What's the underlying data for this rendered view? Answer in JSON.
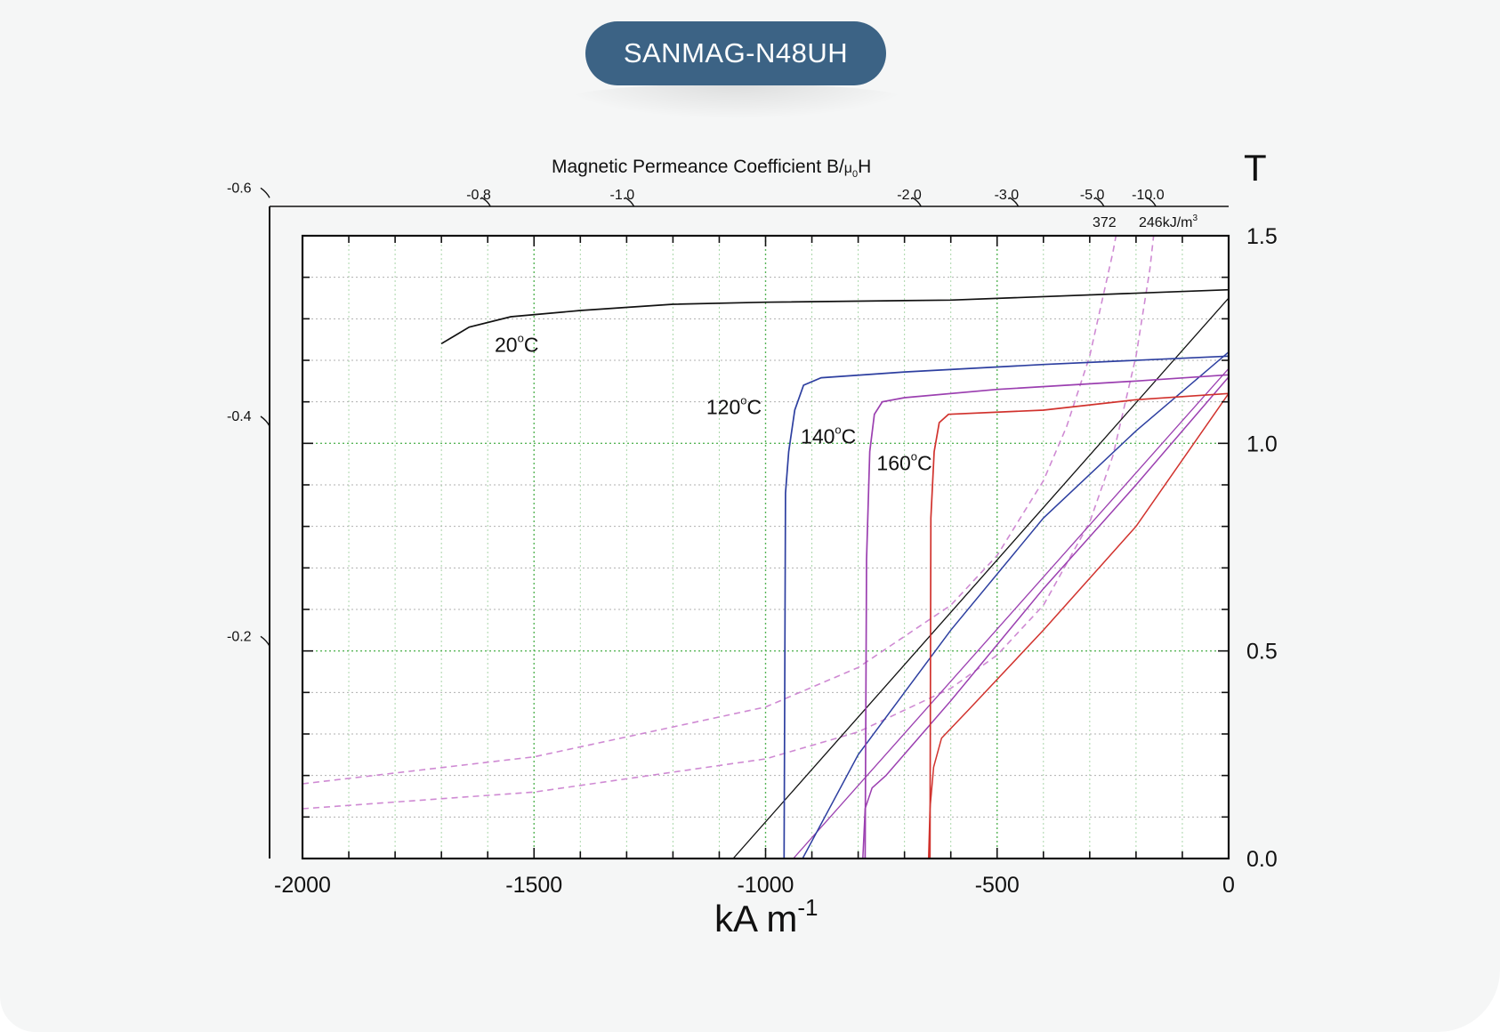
{
  "header": {
    "title": "SANMAG-N48UH"
  },
  "chart_data": {
    "type": "line",
    "title": "",
    "top_axis": {
      "label_main": "Magnetic Permeance Coefficient B/",
      "label_mu": "μ",
      "label_sub": "0",
      "label_end": "H",
      "ticks": [
        {
          "label": "-0.8",
          "x": -1600
        },
        {
          "label": "-1.0",
          "x": -1290
        },
        {
          "label": "-2.0",
          "x": -670
        },
        {
          "label": "-3.0",
          "x": -460
        },
        {
          "label": "-5.0",
          "x": -275
        },
        {
          "label": "-10.0",
          "x": -163
        }
      ],
      "energy_labels": [
        "372",
        "246kJ/m"
      ],
      "energy_sup": "3"
    },
    "left_axis": {
      "ticks": [
        {
          "label": "-0.6",
          "y": 1.6
        },
        {
          "label": "-0.4",
          "y": 1.05
        },
        {
          "label": "-0.2",
          "y": 0.52
        }
      ]
    },
    "xlabel": "kA m",
    "xlabel_sup": "-1",
    "ylabel": "T",
    "xlim": [
      -2000,
      0
    ],
    "ylim": [
      0.0,
      1.5
    ],
    "x_ticks": [
      -2000,
      -1500,
      -1000,
      -500,
      0
    ],
    "x_tick_labels": [
      "-2000",
      "-1500",
      "-1000",
      "-500",
      "0"
    ],
    "y_ticks": [
      0.0,
      0.5,
      1.0,
      1.5
    ],
    "y_tick_labels": [
      "0.0",
      "0.5",
      "1.0",
      "1.5"
    ],
    "grid": true,
    "series": [
      {
        "name": "20°C",
        "color": "#111111",
        "label": {
          "text": "20",
          "deg": "o",
          "unit": "C",
          "x": -1585,
          "y": 1.22
        },
        "J": [
          [
            -1700,
            1.24
          ],
          [
            -1640,
            1.28
          ],
          [
            -1550,
            1.305
          ],
          [
            -1400,
            1.32
          ],
          [
            -1200,
            1.335
          ],
          [
            -1000,
            1.34
          ],
          [
            -600,
            1.345
          ],
          [
            0,
            1.37
          ]
        ],
        "B": []
      },
      {
        "name": "120°C",
        "color": "#2d3fa0",
        "label": {
          "text": "120",
          "deg": "o",
          "unit": "C",
          "x": -1128,
          "y": 1.07
        },
        "J": [
          [
            -960,
            0.0
          ],
          [
            -957,
            0.88
          ],
          [
            -950,
            0.98
          ],
          [
            -937,
            1.08
          ],
          [
            -918,
            1.14
          ],
          [
            -880,
            1.158
          ],
          [
            -700,
            1.172
          ],
          [
            -400,
            1.19
          ],
          [
            0,
            1.21
          ]
        ],
        "B": [
          [
            -920,
            0.0
          ],
          [
            -800,
            0.25
          ],
          [
            -600,
            0.55
          ],
          [
            -400,
            0.82
          ],
          [
            -200,
            1.03
          ],
          [
            0,
            1.22
          ]
        ]
      },
      {
        "name": "140°C",
        "color": "#9b3fb0",
        "label": {
          "text": "140",
          "deg": "o",
          "unit": "C",
          "x": -924,
          "y": 1.0
        },
        "J": [
          [
            -785,
            0.0
          ],
          [
            -782,
            0.72
          ],
          [
            -775,
            0.98
          ],
          [
            -765,
            1.07
          ],
          [
            -748,
            1.1
          ],
          [
            -700,
            1.11
          ],
          [
            -500,
            1.13
          ],
          [
            -200,
            1.15
          ],
          [
            0,
            1.165
          ]
        ],
        "B": [
          [
            -790,
            0.0
          ],
          [
            -785,
            0.12
          ],
          [
            -770,
            0.17
          ],
          [
            -740,
            0.2
          ],
          [
            -600,
            0.38
          ],
          [
            -400,
            0.65
          ],
          [
            -200,
            0.9
          ],
          [
            0,
            1.16
          ]
        ]
      },
      {
        "name": "160°C",
        "color": "#d1322d",
        "label": {
          "text": "160",
          "deg": "o",
          "unit": "C",
          "x": -760,
          "y": 0.935
        },
        "J": [
          [
            -645,
            0.0
          ],
          [
            -643,
            0.82
          ],
          [
            -636,
            0.98
          ],
          [
            -625,
            1.05
          ],
          [
            -605,
            1.07
          ],
          [
            -400,
            1.08
          ],
          [
            -200,
            1.105
          ],
          [
            0,
            1.12
          ]
        ],
        "B": [
          [
            -648,
            0.0
          ],
          [
            -645,
            0.12
          ],
          [
            -637,
            0.22
          ],
          [
            -620,
            0.29
          ],
          [
            -560,
            0.36
          ],
          [
            -400,
            0.55
          ],
          [
            -200,
            0.8
          ],
          [
            0,
            1.12
          ]
        ]
      }
    ],
    "load_lines": [
      {
        "color": "#111111",
        "points": [
          [
            -1070,
            0.0
          ],
          [
            0,
            1.35
          ]
        ]
      },
      {
        "color": "#9b3fb0",
        "points": [
          [
            -940,
            0.0
          ],
          [
            0,
            1.18
          ]
        ]
      }
    ],
    "energy_curves": [
      {
        "label": "372",
        "color": "#cf8ad3",
        "points": [
          [
            -2000,
            0.18
          ],
          [
            -1500,
            0.245
          ],
          [
            -1000,
            0.365
          ],
          [
            -800,
            0.46
          ],
          [
            -600,
            0.61
          ],
          [
            -500,
            0.73
          ],
          [
            -400,
            0.91
          ],
          [
            -350,
            1.04
          ],
          [
            -300,
            1.21
          ],
          [
            -250,
            1.46
          ],
          [
            -240,
            1.52
          ]
        ]
      },
      {
        "label": "246kJ/m3",
        "color": "#cf8ad3",
        "points": [
          [
            -2000,
            0.12
          ],
          [
            -1500,
            0.16
          ],
          [
            -1000,
            0.24
          ],
          [
            -800,
            0.305
          ],
          [
            -600,
            0.41
          ],
          [
            -500,
            0.49
          ],
          [
            -400,
            0.61
          ],
          [
            -300,
            0.81
          ],
          [
            -250,
            0.97
          ],
          [
            -200,
            1.21
          ],
          [
            -170,
            1.42
          ],
          [
            -160,
            1.52
          ]
        ]
      }
    ]
  }
}
